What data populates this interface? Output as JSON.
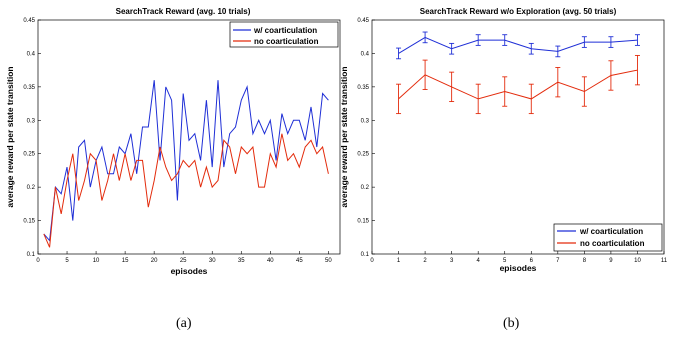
{
  "colors": {
    "series_1": "#1f2fd6",
    "series_2": "#e32b0c"
  },
  "chart_data": [
    {
      "type": "line",
      "title": "SearchTrack Reward (avg. 10 trials)",
      "xlabel": "episodes",
      "ylabel": "average reward per state transition",
      "xlim": [
        0,
        52
      ],
      "ylim": [
        0.1,
        0.45
      ],
      "xticks": [
        0,
        5,
        10,
        15,
        20,
        25,
        30,
        35,
        40,
        45,
        50
      ],
      "yticks": [
        0.1,
        0.15,
        0.2,
        0.25,
        0.3,
        0.35,
        0.4,
        0.45
      ],
      "yticklabels": [
        "0.1",
        "0.15",
        "0.2",
        "0.25",
        "0.3",
        "0.35",
        "0.4",
        "0.45"
      ],
      "legend_position": "top-right",
      "x": [
        1,
        2,
        3,
        4,
        5,
        6,
        7,
        8,
        9,
        10,
        11,
        12,
        13,
        14,
        15,
        16,
        17,
        18,
        19,
        20,
        21,
        22,
        23,
        24,
        25,
        26,
        27,
        28,
        29,
        30,
        31,
        32,
        33,
        34,
        35,
        36,
        37,
        38,
        39,
        40,
        41,
        42,
        43,
        44,
        45,
        46,
        47,
        48,
        49,
        50
      ],
      "series": [
        {
          "name": "w/ coarticulation",
          "color": "#1f2fd6",
          "values": [
            0.13,
            0.12,
            0.2,
            0.19,
            0.23,
            0.15,
            0.26,
            0.27,
            0.2,
            0.24,
            0.26,
            0.22,
            0.22,
            0.26,
            0.25,
            0.28,
            0.22,
            0.29,
            0.29,
            0.36,
            0.24,
            0.35,
            0.33,
            0.18,
            0.34,
            0.27,
            0.28,
            0.24,
            0.33,
            0.23,
            0.36,
            0.23,
            0.28,
            0.29,
            0.33,
            0.35,
            0.28,
            0.3,
            0.28,
            0.3,
            0.24,
            0.31,
            0.28,
            0.3,
            0.3,
            0.27,
            0.32,
            0.26,
            0.34,
            0.33
          ]
        },
        {
          "name": "no coarticulation",
          "color": "#e32b0c",
          "values": [
            0.13,
            0.11,
            0.2,
            0.16,
            0.21,
            0.25,
            0.18,
            0.21,
            0.25,
            0.24,
            0.18,
            0.21,
            0.25,
            0.21,
            0.25,
            0.21,
            0.24,
            0.24,
            0.17,
            0.21,
            0.26,
            0.23,
            0.21,
            0.22,
            0.24,
            0.23,
            0.24,
            0.2,
            0.23,
            0.2,
            0.21,
            0.27,
            0.26,
            0.22,
            0.26,
            0.25,
            0.26,
            0.2,
            0.2,
            0.25,
            0.23,
            0.28,
            0.24,
            0.25,
            0.23,
            0.26,
            0.27,
            0.25,
            0.26,
            0.22
          ]
        }
      ]
    },
    {
      "type": "line",
      "title": "SearchTrack Reward w/o Exploration (avg. 50 trials)",
      "xlabel": "episodes",
      "ylabel": "average reward per state transition",
      "xlim": [
        0,
        11
      ],
      "ylim": [
        0.1,
        0.45
      ],
      "xticks": [
        0,
        1,
        2,
        3,
        4,
        5,
        6,
        7,
        8,
        9,
        10,
        11
      ],
      "yticks": [
        0.1,
        0.15,
        0.2,
        0.25,
        0.3,
        0.35,
        0.4,
        0.45
      ],
      "yticklabels": [
        "0.1",
        "0.15",
        "0.2",
        "0.25",
        "0.3",
        "0.35",
        "0.4",
        "0.45"
      ],
      "legend_position": "bottom-right",
      "x": [
        1,
        2,
        3,
        4,
        5,
        6,
        7,
        8,
        9,
        10
      ],
      "series": [
        {
          "name": "w/ coarticulation",
          "color": "#1f2fd6",
          "values": [
            0.4,
            0.424,
            0.407,
            0.42,
            0.42,
            0.407,
            0.403,
            0.417,
            0.417,
            0.42
          ],
          "errors": [
            0.008,
            0.008,
            0.008,
            0.008,
            0.008,
            0.008,
            0.008,
            0.008,
            0.008,
            0.008
          ]
        },
        {
          "name": "no coarticulation",
          "color": "#e32b0c",
          "values": [
            0.332,
            0.368,
            0.35,
            0.332,
            0.343,
            0.332,
            0.357,
            0.343,
            0.367,
            0.375
          ],
          "errors": [
            0.022,
            0.022,
            0.022,
            0.022,
            0.022,
            0.022,
            0.022,
            0.022,
            0.022,
            0.022
          ]
        }
      ]
    }
  ],
  "captions": [
    "(a)",
    "(b)"
  ]
}
